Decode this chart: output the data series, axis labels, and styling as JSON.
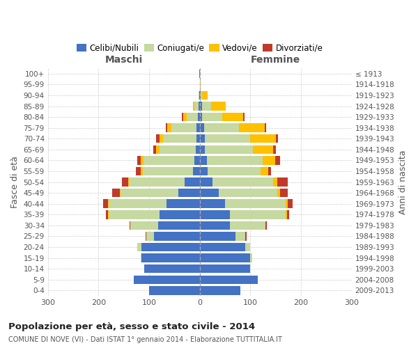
{
  "age_groups": [
    "0-4",
    "5-9",
    "10-14",
    "15-19",
    "20-24",
    "25-29",
    "30-34",
    "35-39",
    "40-44",
    "45-49",
    "50-54",
    "55-59",
    "60-64",
    "65-69",
    "70-74",
    "75-79",
    "80-84",
    "85-89",
    "90-94",
    "95-99",
    "100+"
  ],
  "birth_years": [
    "2009-2013",
    "2004-2008",
    "1999-2003",
    "1994-1998",
    "1989-1993",
    "1984-1988",
    "1979-1983",
    "1974-1978",
    "1969-1973",
    "1964-1968",
    "1959-1963",
    "1954-1958",
    "1949-1953",
    "1944-1948",
    "1939-1943",
    "1934-1938",
    "1929-1933",
    "1924-1928",
    "1919-1923",
    "1914-1918",
    "≤ 1913"
  ],
  "maschi_celibi": [
    100,
    130,
    110,
    115,
    115,
    90,
    82,
    80,
    65,
    42,
    30,
    13,
    11,
    8,
    7,
    6,
    4,
    2,
    1,
    0,
    1
  ],
  "maschi_coniugati": [
    0,
    0,
    0,
    2,
    8,
    15,
    55,
    100,
    115,
    115,
    110,
    100,
    100,
    72,
    65,
    50,
    22,
    8,
    1,
    0,
    0
  ],
  "maschi_vedovi": [
    0,
    0,
    0,
    0,
    0,
    0,
    0,
    1,
    1,
    1,
    2,
    3,
    5,
    7,
    8,
    8,
    7,
    3,
    0,
    0,
    0
  ],
  "maschi_divorziati": [
    0,
    0,
    0,
    0,
    0,
    2,
    2,
    5,
    10,
    15,
    12,
    10,
    7,
    5,
    7,
    3,
    3,
    0,
    0,
    0,
    0
  ],
  "femmine_celibi": [
    80,
    115,
    100,
    100,
    90,
    70,
    60,
    60,
    50,
    38,
    25,
    15,
    14,
    10,
    10,
    8,
    5,
    5,
    2,
    1,
    0
  ],
  "femmine_coniugati": [
    0,
    0,
    0,
    3,
    10,
    20,
    70,
    110,
    120,
    115,
    120,
    105,
    110,
    95,
    90,
    70,
    40,
    18,
    2,
    0,
    0
  ],
  "femmine_vedovi": [
    0,
    0,
    0,
    0,
    0,
    0,
    0,
    2,
    3,
    5,
    8,
    15,
    25,
    40,
    50,
    50,
    40,
    28,
    12,
    1,
    1
  ],
  "femmine_divorziati": [
    0,
    0,
    0,
    0,
    0,
    2,
    2,
    5,
    10,
    15,
    20,
    5,
    10,
    5,
    5,
    3,
    3,
    0,
    0,
    0,
    0
  ],
  "color_celibi": "#4472c4",
  "color_coniugati": "#c5d9a0",
  "color_vedovi": "#ffc000",
  "color_divorziati": "#c0392b",
  "title": "Popolazione per età, sesso e stato civile - 2014",
  "subtitle": "COMUNE DI NOVE (VI) - Dati ISTAT 1° gennaio 2014 - Elaborazione TUTTITALIA.IT",
  "ylabel_left": "Fasce di età",
  "ylabel_right": "Anni di nascita",
  "xlabel_maschi": "Maschi",
  "xlabel_femmine": "Femmine",
  "xlim": 300,
  "bg_color": "#ffffff",
  "grid_color": "#cccccc"
}
